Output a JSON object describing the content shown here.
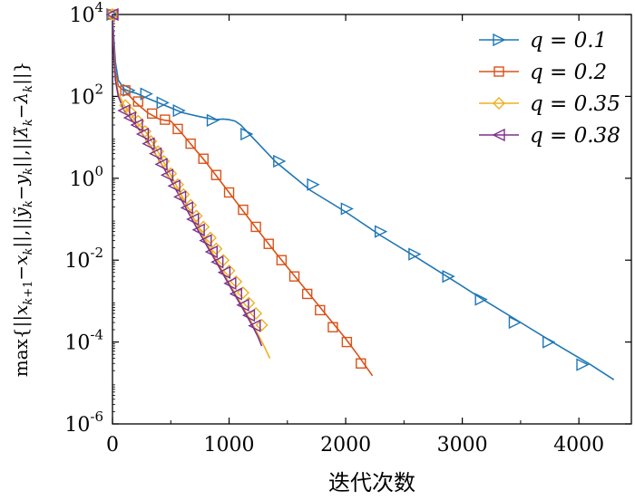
{
  "chart_data": {
    "type": "line",
    "xlabel": "迭代次数",
    "ylabel": "max{||x_{k+1}−x_k||,||ỹ_k−y_k||,||λ̃_k−λ_k||}",
    "xlim": [
      0,
      4450
    ],
    "ylim_log10": [
      -6,
      4
    ],
    "yscale": "log",
    "x_ticks": [
      0,
      1000,
      2000,
      3000,
      4000
    ],
    "x_tick_labels": [
      "0",
      "1000",
      "2000",
      "3000",
      "4000"
    ],
    "y_ticks_log10": [
      -6,
      -4,
      -2,
      0,
      2,
      4
    ],
    "y_tick_labels": [
      [
        "10",
        "-6"
      ],
      [
        "10",
        "-4"
      ],
      [
        "10",
        "-2"
      ],
      [
        "10",
        "0"
      ],
      [
        "10",
        "2"
      ],
      [
        "10",
        "4"
      ]
    ],
    "grid": false,
    "legend_position": "top-right",
    "series": [
      {
        "name": "q = 0.1",
        "color": "#1f77b4",
        "marker": "triangle-right",
        "x": [
          0,
          10,
          25,
          50,
          100,
          150,
          200,
          300,
          450,
          600,
          750,
          880,
          950,
          1000,
          1050,
          1100,
          1200,
          1400,
          1700,
          2000,
          2300,
          2600,
          2900,
          3200,
          3500,
          3800,
          4100,
          4300
        ],
        "y": [
          10000,
          3000,
          700,
          250,
          150,
          130,
          120,
          90,
          60,
          40,
          32,
          27,
          28,
          27,
          25,
          20,
          10,
          2.5,
          0.5,
          0.15,
          0.04,
          0.012,
          0.0035,
          0.001,
          0.0003,
          9e-05,
          2.8e-05,
          1.2e-05
        ],
        "marker_x": [
          0,
          140,
          290,
          430,
          570,
          860,
          1150,
          1430,
          1720,
          2010,
          2300,
          2590,
          2880,
          3160,
          3450,
          3740,
          4030
        ],
        "marker_y": [
          10000,
          140,
          115,
          70,
          45,
          26,
          12,
          2.6,
          0.7,
          0.18,
          0.05,
          0.014,
          0.004,
          0.0011,
          0.0003,
          0.0001,
          2.8e-05
        ]
      },
      {
        "name": "q = 0.2",
        "color": "#d95319",
        "marker": "square",
        "x": [
          0,
          10,
          25,
          50,
          80,
          100,
          150,
          200,
          300,
          400,
          450,
          500,
          600,
          800,
          1000,
          1200,
          1400,
          1600,
          1800,
          2000,
          2100,
          2230
        ],
        "y": [
          10000,
          2000,
          400,
          180,
          150,
          140,
          100,
          70,
          40,
          28,
          26,
          25,
          12,
          2.5,
          0.45,
          0.08,
          0.015,
          0.003,
          0.0006,
          0.00012,
          5e-05,
          1.5e-05
        ],
        "marker_x": [
          0,
          110,
          220,
          340,
          450,
          560,
          670,
          780,
          890,
          1000,
          1120,
          1230,
          1340,
          1450,
          1560,
          1670,
          1780,
          1890,
          2010,
          2130
        ],
        "marker_y": [
          10000,
          140,
          75,
          38,
          27,
          16,
          7,
          3,
          1.2,
          0.45,
          0.17,
          0.065,
          0.025,
          0.01,
          0.004,
          0.0015,
          0.0006,
          0.00023,
          0.0001,
          3e-05
        ]
      },
      {
        "name": "q = 0.35",
        "color": "#edb120",
        "marker": "diamond",
        "x": [
          0,
          10,
          25,
          50,
          100,
          150,
          200,
          300,
          400,
          500,
          600,
          700,
          800,
          900,
          1000,
          1100,
          1200,
          1300,
          1350
        ],
        "y": [
          10000,
          1500,
          300,
          120,
          60,
          40,
          25,
          12,
          4,
          1.2,
          0.35,
          0.1,
          0.03,
          0.009,
          0.0028,
          0.0009,
          0.00028,
          8e-05,
          4e-05
        ],
        "marker_x": [
          0,
          110,
          160,
          220,
          280,
          330,
          390,
          440,
          500,
          560,
          610,
          670,
          720,
          780,
          840,
          890,
          950,
          1000,
          1060,
          1120,
          1170,
          1230,
          1280
        ],
        "marker_y": [
          10000,
          60,
          40,
          25,
          14,
          8,
          4.5,
          2.6,
          1.3,
          0.7,
          0.4,
          0.22,
          0.12,
          0.065,
          0.035,
          0.019,
          0.01,
          0.0055,
          0.003,
          0.0016,
          0.0009,
          0.0005,
          0.00026
        ]
      },
      {
        "name": "q = 0.38",
        "color": "#7e2f8e",
        "marker": "triangle-left",
        "x": [
          0,
          10,
          25,
          50,
          100,
          150,
          200,
          300,
          400,
          500,
          600,
          700,
          800,
          900,
          1000,
          1100,
          1200,
          1250,
          1280
        ],
        "y": [
          10000,
          1200,
          250,
          100,
          45,
          30,
          20,
          8,
          2.8,
          0.9,
          0.27,
          0.08,
          0.025,
          0.008,
          0.0025,
          0.0008,
          0.00025,
          0.00013,
          8e-05
        ],
        "marker_x": [
          0,
          100,
          150,
          210,
          260,
          310,
          370,
          420,
          470,
          530,
          580,
          640,
          690,
          740,
          800,
          850,
          900,
          960,
          1010,
          1060,
          1120,
          1170,
          1220
        ],
        "marker_y": [
          10000,
          45,
          30,
          20,
          12,
          7,
          4,
          2.2,
          1.2,
          0.65,
          0.35,
          0.19,
          0.1,
          0.055,
          0.03,
          0.016,
          0.009,
          0.005,
          0.0027,
          0.0015,
          0.0008,
          0.00045,
          0.00025
        ]
      }
    ]
  }
}
